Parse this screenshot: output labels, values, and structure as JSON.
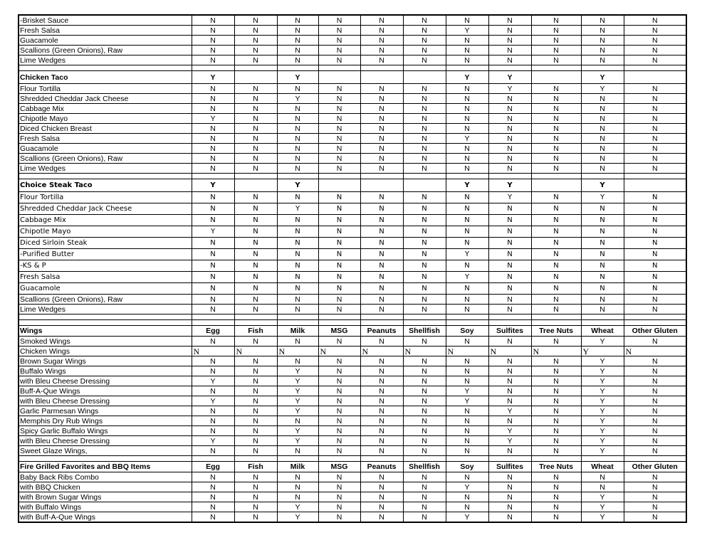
{
  "columns": [
    "Egg",
    "Fish",
    "Milk",
    "MSG",
    "Peanuts",
    "Shellfish",
    "Soy",
    "Sulfites",
    "Tree Nuts",
    "Wheat",
    "Other Gluten"
  ],
  "rows": [
    {
      "kind": "item",
      "label": "-Brisket Sauce",
      "values": [
        "N",
        "N",
        "N",
        "N",
        "N",
        "N",
        "N",
        "N",
        "N",
        "N",
        "N"
      ]
    },
    {
      "kind": "item",
      "label": "Fresh Salsa",
      "values": [
        "N",
        "N",
        "N",
        "N",
        "N",
        "N",
        "Y",
        "N",
        "N",
        "N",
        "N"
      ]
    },
    {
      "kind": "item",
      "label": "Guacamole",
      "values": [
        "N",
        "N",
        "N",
        "N",
        "N",
        "N",
        "N",
        "N",
        "N",
        "N",
        "N"
      ]
    },
    {
      "kind": "item",
      "label": "Scallions (Green Onions), Raw",
      "values": [
        "N",
        "N",
        "N",
        "N",
        "N",
        "N",
        "N",
        "N",
        "N",
        "N",
        "N"
      ]
    },
    {
      "kind": "item",
      "label": "Lime Wedges",
      "values": [
        "N",
        "N",
        "N",
        "N",
        "N",
        "N",
        "N",
        "N",
        "N",
        "N",
        "N"
      ]
    },
    {
      "kind": "blank",
      "label": "",
      "values": [
        "",
        "",
        "",
        "",
        "",
        "",
        "",
        "",
        "",
        "",
        ""
      ]
    },
    {
      "kind": "section",
      "label": "Chicken Taco",
      "values": [
        "Y",
        "",
        "Y",
        "",
        "",
        "",
        "Y",
        "Y",
        "",
        "Y",
        ""
      ]
    },
    {
      "kind": "item",
      "label": "Flour Tortilla",
      "values": [
        "N",
        "N",
        "N",
        "N",
        "N",
        "N",
        "N",
        "Y",
        "N",
        "Y",
        "N"
      ]
    },
    {
      "kind": "item",
      "label": "Shredded Cheddar Jack Cheese",
      "values": [
        "N",
        "N",
        "Y",
        "N",
        "N",
        "N",
        "N",
        "N",
        "N",
        "N",
        "N"
      ]
    },
    {
      "kind": "item",
      "label": "Cabbage Mix",
      "values": [
        "N",
        "N",
        "N",
        "N",
        "N",
        "N",
        "N",
        "N",
        "N",
        "N",
        "N"
      ]
    },
    {
      "kind": "item",
      "label": "Chipotle Mayo",
      "values": [
        "Y",
        "N",
        "N",
        "N",
        "N",
        "N",
        "N",
        "N",
        "N",
        "N",
        "N"
      ]
    },
    {
      "kind": "item",
      "label": "Diced Chicken Breast",
      "values": [
        "N",
        "N",
        "N",
        "N",
        "N",
        "N",
        "N",
        "N",
        "N",
        "N",
        "N"
      ]
    },
    {
      "kind": "item",
      "label": "Fresh Salsa",
      "values": [
        "N",
        "N",
        "N",
        "N",
        "N",
        "N",
        "Y",
        "N",
        "N",
        "N",
        "N"
      ]
    },
    {
      "kind": "item",
      "label": "Guacamole",
      "values": [
        "N",
        "N",
        "N",
        "N",
        "N",
        "N",
        "N",
        "N",
        "N",
        "N",
        "N"
      ]
    },
    {
      "kind": "item",
      "label": "Scallions (Green Onions), Raw",
      "values": [
        "N",
        "N",
        "N",
        "N",
        "N",
        "N",
        "N",
        "N",
        "N",
        "N",
        "N"
      ]
    },
    {
      "kind": "item",
      "label": "Lime Wedges",
      "values": [
        "N",
        "N",
        "N",
        "N",
        "N",
        "N",
        "N",
        "N",
        "N",
        "N",
        "N"
      ]
    },
    {
      "kind": "blank",
      "label": "",
      "values": [
        "",
        "",
        "",
        "",
        "",
        "",
        "",
        "",
        "",
        "",
        ""
      ]
    },
    {
      "kind": "section",
      "label": "Choice Steak Taco",
      "values": [
        "Y",
        "",
        "Y",
        "",
        "",
        "",
        "Y",
        "Y",
        "",
        "Y",
        ""
      ]
    },
    {
      "kind": "alt",
      "label": "Flour Tortilla",
      "values": [
        "N",
        "N",
        "N",
        "N",
        "N",
        "N",
        "N",
        "Y",
        "N",
        "Y",
        "N"
      ]
    },
    {
      "kind": "alt",
      "label": "Shredded Cheddar Jack Cheese",
      "values": [
        "N",
        "N",
        "Y",
        "N",
        "N",
        "N",
        "N",
        "N",
        "N",
        "N",
        "N"
      ]
    },
    {
      "kind": "alt",
      "label": "Cabbage Mix",
      "values": [
        "N",
        "N",
        "N",
        "N",
        "N",
        "N",
        "N",
        "N",
        "N",
        "N",
        "N"
      ]
    },
    {
      "kind": "alt",
      "label": "Chipotle Mayo",
      "values": [
        "Y",
        "N",
        "N",
        "N",
        "N",
        "N",
        "N",
        "N",
        "N",
        "N",
        "N"
      ]
    },
    {
      "kind": "alt",
      "label": "Diced Sirloin Steak",
      "values": [
        "N",
        "N",
        "N",
        "N",
        "N",
        "N",
        "N",
        "N",
        "N",
        "N",
        "N"
      ]
    },
    {
      "kind": "alt",
      "label": "-Purified Butter",
      "values": [
        "N",
        "N",
        "N",
        "N",
        "N",
        "N",
        "Y",
        "N",
        "N",
        "N",
        "N"
      ]
    },
    {
      "kind": "alt",
      "label": "-KS & P",
      "values": [
        "N",
        "N",
        "N",
        "N",
        "N",
        "N",
        "N",
        "N",
        "N",
        "N",
        "N"
      ]
    },
    {
      "kind": "alt",
      "label": "Fresh Salsa",
      "values": [
        "N",
        "N",
        "N",
        "N",
        "N",
        "N",
        "Y",
        "N",
        "N",
        "N",
        "N"
      ]
    },
    {
      "kind": "alt",
      "label": "Guacamole",
      "values": [
        "N",
        "N",
        "N",
        "N",
        "N",
        "N",
        "N",
        "N",
        "N",
        "N",
        "N"
      ]
    },
    {
      "kind": "item",
      "label": "Scallions (Green Onions), Raw",
      "values": [
        "N",
        "N",
        "N",
        "N",
        "N",
        "N",
        "N",
        "N",
        "N",
        "N",
        "N"
      ]
    },
    {
      "kind": "item",
      "label": "Lime Wedges",
      "values": [
        "N",
        "N",
        "N",
        "N",
        "N",
        "N",
        "N",
        "N",
        "N",
        "N",
        "N"
      ]
    },
    {
      "kind": "blank",
      "label": "",
      "values": [
        "",
        "",
        "",
        "",
        "",
        "",
        "",
        "",
        "",
        "",
        ""
      ]
    },
    {
      "kind": "blank",
      "label": "",
      "values": [
        "",
        "",
        "",
        "",
        "",
        "",
        "",
        "",
        "",
        "",
        ""
      ]
    },
    {
      "kind": "colhead",
      "label": "Wings",
      "values": [
        "Egg",
        "Fish",
        "Milk",
        "MSG",
        "Peanuts",
        "Shellfish",
        "Soy",
        "Sulfites",
        "Tree Nuts",
        "Wheat",
        "Other Gluten"
      ]
    },
    {
      "kind": "item",
      "label": "Smoked Wings",
      "values": [
        "N",
        "N",
        "N",
        "N",
        "N",
        "N",
        "N",
        "N",
        "N",
        "Y",
        "N"
      ]
    },
    {
      "kind": "serif",
      "label": "Chicken Wings",
      "values": [
        "N",
        "N",
        "N",
        "N",
        "N",
        "N",
        "N",
        "N",
        "N",
        "Y",
        "N"
      ]
    },
    {
      "kind": "item",
      "label": "Brown Sugar Wings",
      "values": [
        "N",
        "N",
        "N",
        "N",
        "N",
        "N",
        "N",
        "N",
        "N",
        "Y",
        "N"
      ]
    },
    {
      "kind": "item",
      "label": "Buffalo Wings",
      "values": [
        "N",
        "N",
        "Y",
        "N",
        "N",
        "N",
        "N",
        "N",
        "N",
        "Y",
        "N"
      ]
    },
    {
      "kind": "item",
      "label": "with Bleu Cheese Dressing",
      "values": [
        "Y",
        "N",
        "Y",
        "N",
        "N",
        "N",
        "N",
        "N",
        "N",
        "Y",
        "N"
      ]
    },
    {
      "kind": "item",
      "label": "Buff-A-Que Wings",
      "values": [
        "N",
        "N",
        "Y",
        "N",
        "N",
        "N",
        "Y",
        "N",
        "N",
        "Y",
        "N"
      ]
    },
    {
      "kind": "item",
      "label": "with Bleu Cheese Dressing",
      "values": [
        "Y",
        "N",
        "Y",
        "N",
        "N",
        "N",
        "Y",
        "N",
        "N",
        "Y",
        "N"
      ]
    },
    {
      "kind": "item",
      "label": "Garlic Parmesan Wings",
      "values": [
        "N",
        "N",
        "Y",
        "N",
        "N",
        "N",
        "N",
        "Y",
        "N",
        "Y",
        "N"
      ]
    },
    {
      "kind": "item",
      "label": "Memphis Dry Rub Wings",
      "values": [
        "N",
        "N",
        "N",
        "N",
        "N",
        "N",
        "N",
        "N",
        "N",
        "Y",
        "N"
      ]
    },
    {
      "kind": "item",
      "label": "Spicy Garlic Buffalo Wings",
      "values": [
        "N",
        "N",
        "Y",
        "N",
        "N",
        "N",
        "N",
        "Y",
        "N",
        "Y",
        "N"
      ]
    },
    {
      "kind": "item",
      "label": "with Bleu Cheese Dressing",
      "values": [
        "Y",
        "N",
        "Y",
        "N",
        "N",
        "N",
        "N",
        "Y",
        "N",
        "Y",
        "N"
      ]
    },
    {
      "kind": "item",
      "label": "Sweet Glaze Wings,",
      "values": [
        "N",
        "N",
        "N",
        "N",
        "N",
        "N",
        "N",
        "N",
        "N",
        "Y",
        "N"
      ]
    },
    {
      "kind": "blank",
      "label": "",
      "values": [
        "",
        "",
        "",
        "",
        "",
        "",
        "",
        "",
        "",
        "",
        ""
      ]
    },
    {
      "kind": "colhead",
      "label": "Fire Grilled Favorites and BBQ Items",
      "values": [
        "Egg",
        "Fish",
        "Milk",
        "MSG",
        "Peanuts",
        "Shellfish",
        "Soy",
        "Sulfites",
        "Tree Nuts",
        "Wheat",
        "Other Gluten"
      ]
    },
    {
      "kind": "item",
      "label": "Baby Back Ribs Combo",
      "values": [
        "N",
        "N",
        "N",
        "N",
        "N",
        "N",
        "N",
        "N",
        "N",
        "N",
        "N"
      ]
    },
    {
      "kind": "item",
      "label": "with BBQ Chicken",
      "values": [
        "N",
        "N",
        "N",
        "N",
        "N",
        "N",
        "Y",
        "N",
        "N",
        "N",
        "N"
      ]
    },
    {
      "kind": "item",
      "label": "with Brown Sugar Wings",
      "values": [
        "N",
        "N",
        "N",
        "N",
        "N",
        "N",
        "N",
        "N",
        "N",
        "Y",
        "N"
      ]
    },
    {
      "kind": "item",
      "label": "with Buffalo Wings",
      "values": [
        "N",
        "N",
        "Y",
        "N",
        "N",
        "N",
        "N",
        "N",
        "N",
        "Y",
        "N"
      ]
    },
    {
      "kind": "item",
      "label": "with Buff-A-Que Wings",
      "values": [
        "N",
        "N",
        "Y",
        "N",
        "N",
        "N",
        "Y",
        "N",
        "N",
        "Y",
        "N"
      ]
    }
  ]
}
